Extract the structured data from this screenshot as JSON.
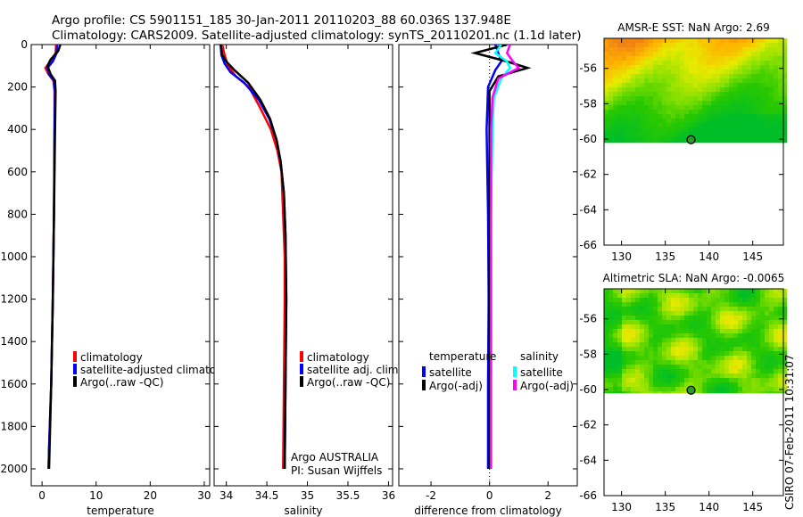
{
  "header": {
    "line1": "Argo profile: CS 5901151_185 30-Jan-2011 20110203_88 60.036S 137.948E",
    "line2": "Climatology: CARS2009. Satellite-adjusted climatology: synTS_20110201.nc (1.1d later)"
  },
  "colors": {
    "climatology": "#ff0000",
    "satellite": "#0000ff",
    "argo": "#000000",
    "sat_salt": "#00ffff",
    "argo_salt": "#ff00ff"
  },
  "chart_data": [
    {
      "type": "line",
      "name": "temperature-profile",
      "xlabel": "temperature",
      "xlim": [
        -2,
        31
      ],
      "ylim": [
        2080,
        0
      ],
      "xticks": [
        0,
        10,
        20,
        30
      ],
      "xtick_labels": [
        "0",
        "10",
        "20",
        "30"
      ],
      "yticks": [
        0,
        200,
        400,
        600,
        800,
        1000,
        1200,
        1400,
        1600,
        1800,
        2000
      ],
      "ytick_labels": [
        "0",
        "200",
        "400",
        "600",
        "800",
        "1000",
        "1200",
        "1400",
        "1600",
        "1800",
        "2000"
      ],
      "legend": [
        "climatology",
        "satellite-adjusted climatology",
        "Argo(..raw -QC)"
      ],
      "series": [
        {
          "name": "climatology",
          "color": "#ff0000",
          "points": [
            [
              2.6,
              0
            ],
            [
              2.5,
              40
            ],
            [
              1.6,
              80
            ],
            [
              0.6,
              110
            ],
            [
              1.2,
              140
            ],
            [
              2.1,
              170
            ],
            [
              2.3,
              220
            ],
            [
              2.3,
              400
            ],
            [
              2.2,
              800
            ],
            [
              2.0,
              1200
            ],
            [
              1.7,
              1600
            ],
            [
              1.3,
              1900
            ],
            [
              1.2,
              2000
            ]
          ]
        },
        {
          "name": "satellite-adjusted climatology",
          "color": "#0000ff",
          "points": [
            [
              2.8,
              0
            ],
            [
              2.7,
              40
            ],
            [
              2.0,
              80
            ],
            [
              1.0,
              110
            ],
            [
              1.3,
              140
            ],
            [
              2.2,
              170
            ],
            [
              2.4,
              220
            ],
            [
              2.3,
              400
            ],
            [
              2.2,
              800
            ],
            [
              2.0,
              1200
            ],
            [
              1.7,
              1600
            ],
            [
              1.3,
              1900
            ],
            [
              1.2,
              2000
            ]
          ]
        },
        {
          "name": "Argo(..raw -QC)",
          "color": "#000000",
          "points": [
            [
              3.4,
              0
            ],
            [
              3.0,
              30
            ],
            [
              1.6,
              70
            ],
            [
              1.0,
              100
            ],
            [
              1.6,
              140
            ],
            [
              2.4,
              170
            ],
            [
              2.5,
              220
            ],
            [
              2.4,
              400
            ],
            [
              2.2,
              800
            ],
            [
              2.0,
              1200
            ],
            [
              1.7,
              1600
            ],
            [
              1.4,
              1900
            ],
            [
              1.3,
              2000
            ]
          ]
        }
      ]
    },
    {
      "type": "line",
      "name": "salinity-profile",
      "xlabel": "salinity",
      "xlim": [
        33.85,
        36.05
      ],
      "ylim": [
        2080,
        0
      ],
      "xticks": [
        34,
        34.5,
        35,
        35.5,
        36
      ],
      "xtick_labels": [
        "34",
        "34.5",
        "35",
        "35.5",
        "36"
      ],
      "legend": [
        "climatology",
        "satellite adj. clim.",
        "Argo(..raw -QC)"
      ],
      "annotations": [
        "Argo AUSTRALIA",
        "PI: Susan Wijffels"
      ],
      "series": [
        {
          "name": "climatology",
          "color": "#ff0000",
          "points": [
            [
              33.95,
              0
            ],
            [
              33.98,
              50
            ],
            [
              34.02,
              100
            ],
            [
              34.12,
              150
            ],
            [
              34.28,
              200
            ],
            [
              34.42,
              300
            ],
            [
              34.55,
              400
            ],
            [
              34.63,
              500
            ],
            [
              34.68,
              600
            ],
            [
              34.7,
              800
            ],
            [
              34.72,
              1000
            ],
            [
              34.72,
              1200
            ],
            [
              34.71,
              1600
            ],
            [
              34.7,
              2000
            ]
          ]
        },
        {
          "name": "satellite adj. clim.",
          "color": "#0000ff",
          "points": [
            [
              33.93,
              0
            ],
            [
              33.94,
              50
            ],
            [
              33.98,
              90
            ],
            [
              34.05,
              130
            ],
            [
              34.22,
              180
            ],
            [
              34.4,
              260
            ],
            [
              34.53,
              350
            ],
            [
              34.62,
              450
            ],
            [
              34.67,
              550
            ],
            [
              34.71,
              700
            ],
            [
              34.73,
              900
            ],
            [
              34.74,
              1200
            ],
            [
              34.73,
              1600
            ],
            [
              34.72,
              2000
            ]
          ]
        },
        {
          "name": "Argo(..raw -QC)",
          "color": "#000000",
          "points": [
            [
              33.93,
              0
            ],
            [
              33.95,
              50
            ],
            [
              34.0,
              80
            ],
            [
              34.1,
              120
            ],
            [
              34.27,
              180
            ],
            [
              34.42,
              260
            ],
            [
              34.54,
              350
            ],
            [
              34.62,
              450
            ],
            [
              34.67,
              550
            ],
            [
              34.71,
              700
            ],
            [
              34.73,
              900
            ],
            [
              34.74,
              1200
            ],
            [
              34.73,
              1600
            ],
            [
              34.72,
              2000
            ]
          ]
        }
      ]
    },
    {
      "type": "line",
      "name": "difference-profile",
      "xlabel": "difference from climatology",
      "xlim": [
        -3.1,
        3.0
      ],
      "ylim": [
        2080,
        0
      ],
      "xticks": [
        -2,
        0,
        2
      ],
      "xtick_labels": [
        "-2",
        "0",
        "2"
      ],
      "legend_left_title": "temperature",
      "legend_right_title": "salinity",
      "legend": [
        "satellite",
        "Argo(-adj)",
        "satellite",
        "Argo(-adj)"
      ],
      "series": [
        {
          "name": "temperature satellite",
          "color": "#0000ff",
          "points": [
            [
              0.2,
              0
            ],
            [
              0.3,
              40
            ],
            [
              0.4,
              80
            ],
            [
              0.2,
              120
            ],
            [
              -0.05,
              200
            ],
            [
              -0.1,
              400
            ],
            [
              -0.05,
              800
            ],
            [
              -0.03,
              1200
            ],
            [
              -0.05,
              1600
            ],
            [
              -0.05,
              2000
            ]
          ]
        },
        {
          "name": "temperature Argo(-adj)",
          "color": "#000000",
          "points": [
            [
              0.6,
              0
            ],
            [
              -0.5,
              40
            ],
            [
              0.6,
              80
            ],
            [
              1.3,
              110
            ],
            [
              0.3,
              150
            ],
            [
              0.0,
              220
            ],
            [
              0.0,
              400
            ],
            [
              0.0,
              800
            ],
            [
              0.0,
              1200
            ],
            [
              0.0,
              1600
            ],
            [
              0.0,
              2000
            ]
          ]
        },
        {
          "name": "salinity satellite",
          "color": "#00ffff",
          "points": [
            [
              0.4,
              0
            ],
            [
              0.2,
              40
            ],
            [
              0.6,
              80
            ],
            [
              0.7,
              110
            ],
            [
              0.4,
              160
            ],
            [
              0.15,
              250
            ],
            [
              0.1,
              400
            ],
            [
              0.05,
              800
            ],
            [
              0.05,
              1200
            ],
            [
              0.05,
              1600
            ],
            [
              0.05,
              2000
            ]
          ]
        },
        {
          "name": "salinity Argo(-adj)",
          "color": "#ff00ff",
          "points": [
            [
              0.7,
              0
            ],
            [
              0.6,
              40
            ],
            [
              0.8,
              80
            ],
            [
              1.0,
              110
            ],
            [
              0.3,
              160
            ],
            [
              0.1,
              250
            ],
            [
              0.05,
              400
            ],
            [
              0.05,
              800
            ],
            [
              0.05,
              1200
            ],
            [
              0.05,
              1600
            ],
            [
              0.05,
              2000
            ]
          ]
        }
      ]
    },
    {
      "type": "heatmap",
      "name": "sst-map",
      "title": "AMSR-E SST: NaN Argo: 2.69",
      "xlim": [
        128,
        148.5
      ],
      "ylim": [
        -66,
        -54.3
      ],
      "xticks": [
        130,
        135,
        140,
        145
      ],
      "xtick_labels": [
        "130",
        "135",
        "140",
        "145"
      ],
      "yticks": [
        -56,
        -58,
        -60,
        -62,
        -64,
        -66
      ],
      "ytick_labels": [
        "-56",
        "-58",
        "-60",
        "-62",
        "-64",
        "-66"
      ],
      "data_lat_limit": -60.2,
      "argo_position": [
        137.948,
        -60.036
      ]
    },
    {
      "type": "heatmap",
      "name": "sla-map",
      "title": "Altimetric SLA: NaN Argo: -0.0065",
      "xlim": [
        128,
        148.5
      ],
      "ylim": [
        -66,
        -54.3
      ],
      "xticks": [
        130,
        135,
        140,
        145
      ],
      "xtick_labels": [
        "130",
        "135",
        "140",
        "145"
      ],
      "yticks": [
        -56,
        -58,
        -60,
        -62,
        -64,
        -66
      ],
      "ytick_labels": [
        "-56",
        "-58",
        "-60",
        "-62",
        "-64",
        "-66"
      ],
      "data_lat_limit": -60.2,
      "argo_position": [
        137.948,
        -60.036
      ]
    }
  ],
  "footer": {
    "stamp": "CSIRO 07-Feb-2011 10:31:07"
  }
}
